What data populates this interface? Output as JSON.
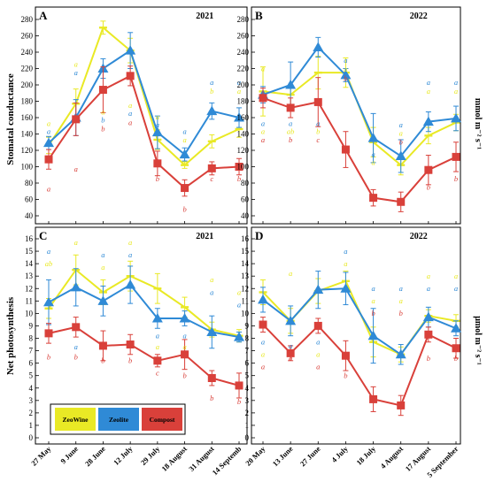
{
  "figure": {
    "y_titles": [
      "Stomatal conductance",
      "Net photosynthesis"
    ],
    "units": [
      "mmol m⁻² s⁻¹",
      "μmol m⁻² s⁻¹"
    ],
    "legend": [
      "ZeoWine",
      "Zeolite",
      "Compost"
    ]
  },
  "colors": {
    "ZeoWine": "#e9e925",
    "Zeolite": "#2f8ad6",
    "Compost": "#d9403a"
  },
  "chart_data": [
    {
      "type": "line",
      "panel": "A",
      "year": "2021",
      "categories": [
        "27 May",
        "9 June",
        "28 June",
        "12 July",
        "29 July",
        "18 August",
        "31 August",
        "14 Septemb"
      ],
      "ylim": [
        40,
        280
      ],
      "yticks": [
        40,
        60,
        80,
        100,
        120,
        140,
        160,
        180,
        200,
        220,
        240,
        260,
        280
      ],
      "series": [
        {
          "name": "ZeoWine",
          "values": [
            126,
            177,
            270,
            242,
            133,
            102,
            131,
            146
          ],
          "err": [
            10,
            18,
            8,
            15,
            12,
            4,
            8,
            10
          ]
        },
        {
          "name": "Zeolite",
          "values": [
            129,
            160,
            220,
            242,
            142,
            115,
            168,
            160
          ],
          "err": [
            8,
            22,
            12,
            22,
            20,
            8,
            10,
            12
          ]
        },
        {
          "name": "Compost",
          "values": [
            109,
            158,
            194,
            211,
            104,
            74,
            98,
            100
          ],
          "err": [
            12,
            20,
            28,
            12,
            15,
            10,
            8,
            10
          ]
        }
      ],
      "letters": [
        {
          "label": "a",
          "x": 0,
          "y": 150,
          "series": "ZeoWine"
        },
        {
          "label": "a",
          "x": 0,
          "y": 140,
          "series": "Zeolite"
        },
        {
          "label": "a",
          "x": 0,
          "y": 70,
          "series": "Compost"
        },
        {
          "label": "a",
          "x": 1,
          "y": 222,
          "series": "ZeoWine"
        },
        {
          "label": "a",
          "x": 1,
          "y": 212,
          "series": "Zeolite"
        },
        {
          "label": "a",
          "x": 1,
          "y": 94,
          "series": "Compost"
        },
        {
          "label": "a",
          "x": 2,
          "y": 164,
          "series": "ZeoWine"
        },
        {
          "label": "b",
          "x": 2,
          "y": 154,
          "series": "Zeolite"
        },
        {
          "label": "b",
          "x": 2,
          "y": 143,
          "series": "Compost"
        },
        {
          "label": "a",
          "x": 3,
          "y": 172,
          "series": "ZeoWine"
        },
        {
          "label": "a",
          "x": 3,
          "y": 162,
          "series": "Zeolite"
        },
        {
          "label": "a",
          "x": 3,
          "y": 151,
          "series": "Compost"
        },
        {
          "label": "a",
          "x": 4,
          "y": 158,
          "series": "ZeoWine"
        },
        {
          "label": "a",
          "x": 4,
          "y": 148,
          "series": "Zeolite"
        },
        {
          "label": "b",
          "x": 4,
          "y": 82,
          "series": "Compost"
        },
        {
          "label": "a",
          "x": 5,
          "y": 130,
          "series": "ZeoWine"
        },
        {
          "label": "a",
          "x": 5,
          "y": 140,
          "series": "Zeolite"
        },
        {
          "label": "b",
          "x": 5,
          "y": 45,
          "series": "Compost"
        },
        {
          "label": "a",
          "x": 6,
          "y": 200,
          "series": "Zeolite"
        },
        {
          "label": "b",
          "x": 6,
          "y": 189,
          "series": "ZeoWine"
        },
        {
          "label": "c",
          "x": 6,
          "y": 82,
          "series": "Compost"
        },
        {
          "label": "a",
          "x": 7,
          "y": 200,
          "series": "Zeolite"
        },
        {
          "label": "a",
          "x": 7,
          "y": 189,
          "series": "ZeoWine"
        },
        {
          "label": "b",
          "x": 7,
          "y": 82,
          "series": "Compost"
        }
      ]
    },
    {
      "type": "line",
      "panel": "B",
      "year": "2022",
      "categories": [
        "20 May",
        "13 June",
        "27 June",
        "4 July",
        "18 July",
        "4 August",
        "17 August",
        "5 September"
      ],
      "ylim": [
        40,
        280
      ],
      "yticks": [
        40,
        60,
        80,
        100,
        120,
        140,
        160,
        180,
        200,
        220,
        240,
        260,
        280
      ],
      "series": [
        {
          "name": "ZeoWine",
          "values": [
            192,
            188,
            215,
            215,
            130,
            102,
            138,
            154
          ],
          "err": [
            30,
            12,
            20,
            18,
            18,
            12,
            10,
            10
          ]
        },
        {
          "name": "Zeolite",
          "values": [
            188,
            200,
            246,
            212,
            135,
            113,
            155,
            159
          ],
          "err": [
            10,
            28,
            12,
            8,
            30,
            20,
            12,
            15
          ]
        },
        {
          "name": "Compost",
          "values": [
            184,
            172,
            179,
            121,
            62,
            57,
            96,
            112
          ],
          "err": [
            12,
            12,
            30,
            22,
            10,
            12,
            18,
            18
          ]
        }
      ],
      "letters": [
        {
          "label": "a",
          "x": 0,
          "y": 217,
          "series": "ZeoWine"
        },
        {
          "label": "a",
          "x": 0,
          "y": 150,
          "series": "Zeolite"
        },
        {
          "label": "a",
          "x": 0,
          "y": 140,
          "series": "ZeoWine"
        },
        {
          "label": "a",
          "x": 0,
          "y": 130,
          "series": "Compost"
        },
        {
          "label": "a",
          "x": 1,
          "y": 150,
          "series": "Zeolite"
        },
        {
          "label": "ab",
          "x": 1,
          "y": 140,
          "series": "ZeoWine"
        },
        {
          "label": "b",
          "x": 1,
          "y": 130,
          "series": "Compost"
        },
        {
          "label": "a",
          "x": 2,
          "y": 150,
          "series": "Zeolite"
        },
        {
          "label": "b",
          "x": 2,
          "y": 140,
          "series": "ZeoWine"
        },
        {
          "label": "c",
          "x": 2,
          "y": 130,
          "series": "Compost"
        },
        {
          "label": "a",
          "x": 3,
          "y": 227,
          "series": "Zeolite"
        },
        {
          "label": "a",
          "x": 3,
          "y": 216,
          "series": "ZeoWine"
        },
        {
          "label": "b",
          "x": 3,
          "y": 205,
          "series": "Compost"
        },
        {
          "label": "a",
          "x": 4,
          "y": 112,
          "series": "Zeolite"
        },
        {
          "label": "a",
          "x": 4,
          "y": 102,
          "series": "ZeoWine"
        },
        {
          "label": "a",
          "x": 5,
          "y": 148,
          "series": "Zeolite"
        },
        {
          "label": "a",
          "x": 5,
          "y": 138,
          "series": "ZeoWine"
        },
        {
          "label": "b",
          "x": 5,
          "y": 127,
          "series": "Compost"
        },
        {
          "label": "a",
          "x": 6,
          "y": 200,
          "series": "Zeolite"
        },
        {
          "label": "a",
          "x": 6,
          "y": 189,
          "series": "ZeoWine"
        },
        {
          "label": "b",
          "x": 6,
          "y": 72,
          "series": "Compost"
        },
        {
          "label": "a",
          "x": 7,
          "y": 200,
          "series": "Zeolite"
        },
        {
          "label": "a",
          "x": 7,
          "y": 189,
          "series": "ZeoWine"
        },
        {
          "label": "b",
          "x": 7,
          "y": 82,
          "series": "Compost"
        }
      ]
    },
    {
      "type": "line",
      "panel": "C",
      "year": "2021",
      "categories": [
        "27 May",
        "9 June",
        "28 June",
        "12 July",
        "29 July",
        "18 August",
        "31 August",
        "14 Septemb"
      ],
      "ylim": [
        0,
        16
      ],
      "yticks": [
        0,
        1,
        2,
        3,
        4,
        5,
        6,
        7,
        8,
        9,
        10,
        11,
        12,
        13,
        14,
        15,
        16
      ],
      "series": [
        {
          "name": "ZeoWine",
          "values": [
            10.4,
            13.5,
            11.7,
            13.0,
            12.0,
            10.5,
            8.7,
            8.2
          ],
          "err": [
            0.8,
            1.2,
            1.0,
            1.2,
            1.2,
            0.8,
            0.6,
            0.5
          ]
        },
        {
          "name": "Zeolite",
          "values": [
            10.9,
            12.1,
            11.0,
            12.3,
            9.6,
            9.6,
            8.5,
            8.1
          ],
          "err": [
            1.8,
            1.5,
            1.2,
            1.5,
            0.8,
            0.6,
            1.3,
            0.4
          ]
        },
        {
          "name": "Compost",
          "values": [
            8.4,
            8.9,
            7.4,
            7.5,
            6.2,
            6.7,
            4.8,
            4.2
          ],
          "err": [
            0.8,
            0.8,
            1.2,
            0.8,
            0.5,
            1.2,
            0.6,
            1.0
          ]
        }
      ],
      "letters": [
        {
          "label": "a",
          "x": 0,
          "y": 14.8,
          "series": "Zeolite"
        },
        {
          "label": "ab",
          "x": 0,
          "y": 13.8,
          "series": "ZeoWine"
        },
        {
          "label": "b",
          "x": 0,
          "y": 6.3,
          "series": "Compost"
        },
        {
          "label": "a",
          "x": 1,
          "y": 15.5,
          "series": "ZeoWine"
        },
        {
          "label": "a",
          "x": 1,
          "y": 7.1,
          "series": "Zeolite"
        },
        {
          "label": "b",
          "x": 1,
          "y": 6.3,
          "series": "Compost"
        },
        {
          "label": "a",
          "x": 2,
          "y": 14.5,
          "series": "Zeolite"
        },
        {
          "label": "a",
          "x": 2,
          "y": 13.5,
          "series": "ZeoWine"
        },
        {
          "label": "b",
          "x": 2,
          "y": 6.0,
          "series": "Compost"
        },
        {
          "label": "a",
          "x": 3,
          "y": 15.5,
          "series": "ZeoWine"
        },
        {
          "label": "a",
          "x": 3,
          "y": 14.5,
          "series": "Zeolite"
        },
        {
          "label": "b",
          "x": 3,
          "y": 6.0,
          "series": "Compost"
        },
        {
          "label": "a",
          "x": 4,
          "y": 8.0,
          "series": "Zeolite"
        },
        {
          "label": "a",
          "x": 4,
          "y": 7.1,
          "series": "ZeoWine"
        },
        {
          "label": "c",
          "x": 4,
          "y": 5.0,
          "series": "Compost"
        },
        {
          "label": "a",
          "x": 5,
          "y": 8.0,
          "series": "Zeolite"
        },
        {
          "label": "a",
          "x": 5,
          "y": 7.1,
          "series": "ZeoWine"
        },
        {
          "label": "b",
          "x": 5,
          "y": 4.8,
          "series": "Compost"
        },
        {
          "label": "a",
          "x": 6,
          "y": 12.5,
          "series": "ZeoWine"
        },
        {
          "label": "a",
          "x": 6,
          "y": 11.5,
          "series": "Zeolite"
        },
        {
          "label": "b",
          "x": 6,
          "y": 3.0,
          "series": "Compost"
        },
        {
          "label": "a",
          "x": 7,
          "y": 11.5,
          "series": "ZeoWine"
        },
        {
          "label": "a",
          "x": 7,
          "y": 10.5,
          "series": "Zeolite"
        },
        {
          "label": "b",
          "x": 7,
          "y": 2.7,
          "series": "Compost"
        }
      ]
    },
    {
      "type": "line",
      "panel": "D",
      "year": "2022",
      "categories": [
        "20 May",
        "13 June",
        "27 June",
        "4 July",
        "18 July",
        "4 August",
        "17 August",
        "5 September"
      ],
      "ylim": [
        0,
        16
      ],
      "yticks": [
        0,
        1,
        2,
        3,
        4,
        5,
        6,
        7,
        8,
        9,
        10,
        11,
        12,
        13,
        14,
        15,
        16
      ],
      "series": [
        {
          "name": "ZeoWine",
          "values": [
            11.7,
            9.4,
            11.8,
            12.6,
            7.7,
            6.7,
            9.8,
            9.4
          ],
          "err": [
            1.0,
            1.0,
            1.0,
            0.8,
            1.2,
            0.6,
            0.5,
            0.5
          ]
        },
        {
          "name": "Zeolite",
          "values": [
            11.1,
            9.4,
            11.9,
            12.0,
            8.2,
            6.7,
            9.7,
            8.8
          ],
          "err": [
            1.0,
            1.2,
            1.5,
            1.3,
            2.2,
            0.8,
            0.8,
            0.6
          ]
        },
        {
          "name": "Compost",
          "values": [
            9.1,
            6.8,
            9.0,
            6.6,
            3.1,
            2.6,
            8.3,
            7.2
          ],
          "err": [
            0.6,
            0.6,
            0.6,
            1.2,
            1.0,
            0.8,
            0.6,
            0.8
          ]
        }
      ],
      "letters": [
        {
          "label": "a",
          "x": 0,
          "y": 7.5,
          "series": "Zeolite"
        },
        {
          "label": "a",
          "x": 0,
          "y": 6.5,
          "series": "ZeoWine"
        },
        {
          "label": "a",
          "x": 0,
          "y": 5.5,
          "series": "Compost"
        },
        {
          "label": "a",
          "x": 1,
          "y": 13.0,
          "series": "ZeoWine"
        },
        {
          "label": "a",
          "x": 1,
          "y": 7.2,
          "series": "Zeolite"
        },
        {
          "label": "a",
          "x": 1,
          "y": 6.2,
          "series": "Compost"
        },
        {
          "label": "a",
          "x": 2,
          "y": 7.5,
          "series": "Zeolite"
        },
        {
          "label": "a",
          "x": 2,
          "y": 6.5,
          "series": "ZeoWine"
        },
        {
          "label": "a",
          "x": 2,
          "y": 5.5,
          "series": "Compost"
        },
        {
          "label": "a",
          "x": 3,
          "y": 14.8,
          "series": "Zeolite"
        },
        {
          "label": "a",
          "x": 3,
          "y": 13.8,
          "series": "ZeoWine"
        },
        {
          "label": "b",
          "x": 3,
          "y": 4.8,
          "series": "Compost"
        },
        {
          "label": "a",
          "x": 4,
          "y": 11.8,
          "series": "Zeolite"
        },
        {
          "label": "a",
          "x": 4,
          "y": 10.8,
          "series": "ZeoWine"
        },
        {
          "label": "b",
          "x": 4,
          "y": 9.8,
          "series": "Compost"
        },
        {
          "label": "a",
          "x": 5,
          "y": 11.8,
          "series": "Zeolite"
        },
        {
          "label": "a",
          "x": 5,
          "y": 10.8,
          "series": "ZeoWine"
        },
        {
          "label": "b",
          "x": 5,
          "y": 9.8,
          "series": "Compost"
        },
        {
          "label": "a",
          "x": 6,
          "y": 12.8,
          "series": "ZeoWine"
        },
        {
          "label": "a",
          "x": 6,
          "y": 11.8,
          "series": "Zeolite"
        },
        {
          "label": "b",
          "x": 6,
          "y": 6.2,
          "series": "Compost"
        },
        {
          "label": "a",
          "x": 7,
          "y": 12.8,
          "series": "ZeoWine"
        },
        {
          "label": "a",
          "x": 7,
          "y": 11.8,
          "series": "Zeolite"
        },
        {
          "label": "b",
          "x": 7,
          "y": 6.2,
          "series": "Compost"
        }
      ]
    }
  ]
}
